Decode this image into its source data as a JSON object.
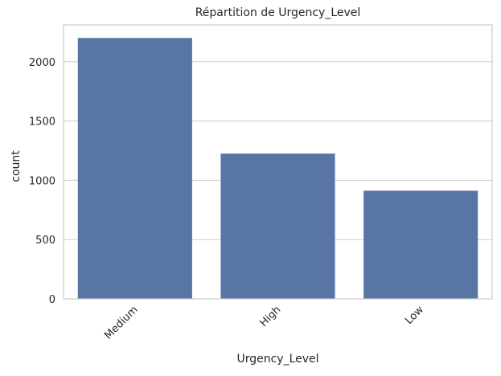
{
  "chart_data": {
    "type": "bar",
    "title": "Répartition de Urgency_Level",
    "xlabel": "Urgency_Level",
    "ylabel": "count",
    "categories": [
      "Medium",
      "High",
      "Low"
    ],
    "values": [
      2200,
      1225,
      912
    ],
    "ylim": [
      0,
      2310
    ],
    "yticks": [
      0,
      500,
      1000,
      1500,
      2000
    ],
    "grid": true,
    "bar_color": "#5975a4",
    "grid_color": "#cccccc",
    "axes_edge_color": "#cccccc"
  }
}
